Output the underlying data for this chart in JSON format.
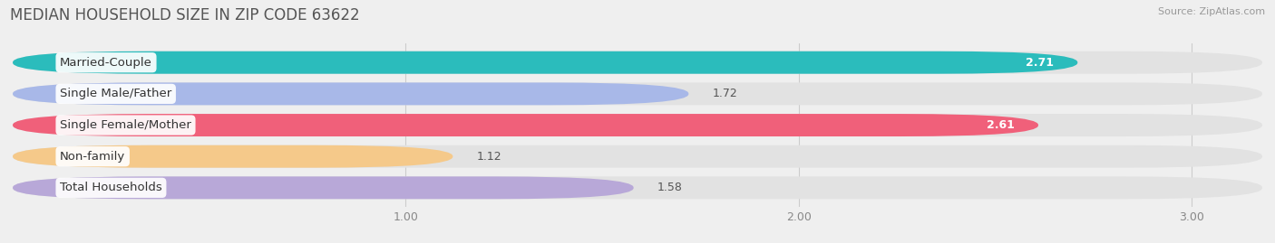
{
  "title": "MEDIAN HOUSEHOLD SIZE IN ZIP CODE 63622",
  "source": "Source: ZipAtlas.com",
  "categories": [
    "Married-Couple",
    "Single Male/Father",
    "Single Female/Mother",
    "Non-family",
    "Total Households"
  ],
  "values": [
    2.71,
    1.72,
    2.61,
    1.12,
    1.58
  ],
  "bar_colors": [
    "#2bbcbc",
    "#a8b8e8",
    "#f0607a",
    "#f5c98a",
    "#b8a8d8"
  ],
  "xlim_left": 0.0,
  "xlim_right": 3.18,
  "xticks": [
    1.0,
    2.0,
    3.0
  ],
  "label_fontsize": 9.5,
  "value_fontsize": 9,
  "title_fontsize": 12,
  "bar_height": 0.72,
  "bar_gap": 1.0,
  "background_color": "#efefef",
  "track_color": "#e2e2e2",
  "value_color_inside": "#ffffff",
  "value_color_outside": "#555555"
}
